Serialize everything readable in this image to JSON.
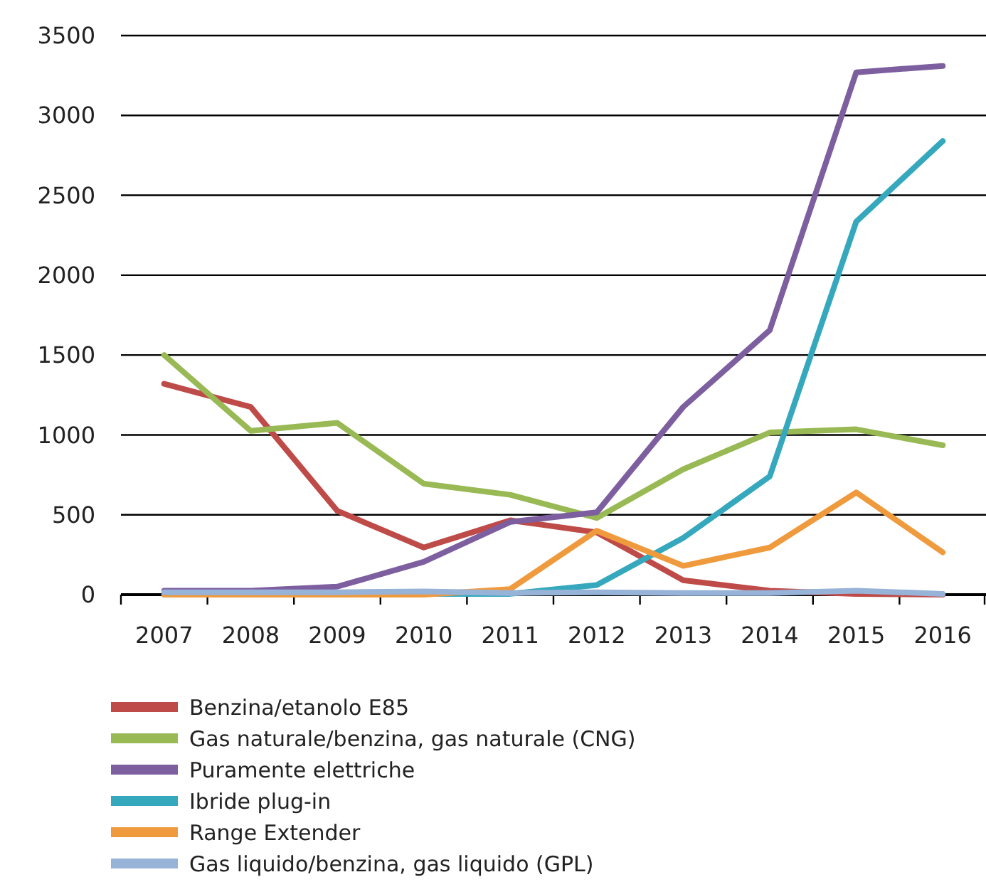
{
  "chart_data": {
    "type": "line",
    "categories": [
      "2007",
      "2008",
      "2009",
      "2010",
      "2011",
      "2012",
      "2013",
      "2014",
      "2015",
      "2016"
    ],
    "series": [
      {
        "name": "Benzina/etanolo E85",
        "color": "#be4b48",
        "values": [
          1320,
          1175,
          525,
          295,
          465,
          390,
          90,
          25,
          5,
          0
        ]
      },
      {
        "name": "Gas naturale/benzina, gas naturale (CNG)",
        "color": "#98b954",
        "values": [
          1500,
          1025,
          1075,
          695,
          625,
          480,
          785,
          1015,
          1035,
          935
        ]
      },
      {
        "name": "Puramente elettriche",
        "color": "#7d5fa0",
        "values": [
          25,
          25,
          50,
          205,
          455,
          515,
          1175,
          1655,
          3270,
          3310
        ]
      },
      {
        "name": "Ibride plug-in",
        "color": "#35a8bd",
        "values": [
          0,
          0,
          0,
          5,
          5,
          60,
          355,
          740,
          2335,
          2840
        ]
      },
      {
        "name": "Range Extender",
        "color": "#f09a3e",
        "values": [
          0,
          0,
          0,
          0,
          35,
          400,
          180,
          295,
          640,
          265
        ]
      },
      {
        "name": "Gas liquido/benzina, gas liquido (GPL)",
        "color": "#97b3d8",
        "values": [
          15,
          15,
          15,
          20,
          10,
          15,
          10,
          10,
          25,
          5
        ]
      }
    ],
    "ylim": [
      0,
      3500
    ],
    "yticks": [
      0,
      500,
      1000,
      1500,
      2000,
      2500,
      3000,
      3500
    ],
    "grid": "y",
    "legend": "bottom"
  }
}
